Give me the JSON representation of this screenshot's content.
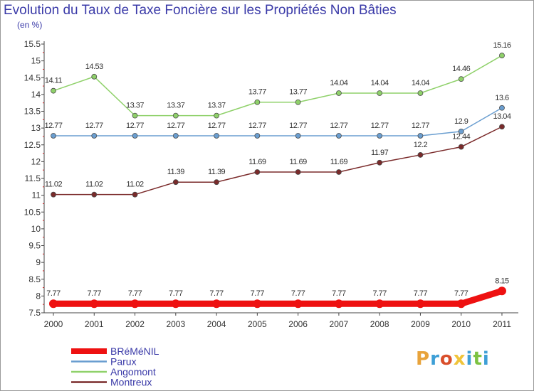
{
  "header": {
    "title": "Evolution du Taux de Taxe Foncière sur les Propriétés Non Bâties",
    "unit": "(en %)"
  },
  "logo": {
    "text": "Proxiti",
    "colors": [
      "#e8a33b",
      "#3e9fd6",
      "#d94f2b",
      "#f0c43a",
      "#3e9fd6",
      "#7cc242",
      "#3e9fd6"
    ]
  },
  "chart_data": {
    "type": "line",
    "x": [
      "2000",
      "2001",
      "2002",
      "2003",
      "2004",
      "2005",
      "2006",
      "2007",
      "2008",
      "2009",
      "2010",
      "2011"
    ],
    "y_ticks": [
      "7.5",
      "8",
      "8.5",
      "9",
      "9.5",
      "10",
      "10.5",
      "11",
      "11.5",
      "12",
      "12.5",
      "13",
      "13.5",
      "14",
      "14.5",
      "15",
      "15.5"
    ],
    "ylim": [
      7.5,
      15.5
    ],
    "grid": false,
    "legend_position": "bottom-left",
    "series": [
      {
        "name": "BRéMéNIL",
        "color": "#ee1111",
        "values": [
          7.77,
          7.77,
          7.77,
          7.77,
          7.77,
          7.77,
          7.77,
          7.77,
          7.77,
          7.77,
          7.77,
          8.15
        ],
        "labels": [
          "7.77",
          "7.77",
          "7.77",
          "7.77",
          "7.77",
          "7.77",
          "7.77",
          "7.77",
          "7.77",
          "7.77",
          "7.77",
          "8.15"
        ]
      },
      {
        "name": "Parux",
        "color": "#6a9ed0",
        "values": [
          12.77,
          12.77,
          12.77,
          12.77,
          12.77,
          12.77,
          12.77,
          12.77,
          12.77,
          12.77,
          12.9,
          13.6
        ],
        "labels": [
          "12.77",
          "12.77",
          "12.77",
          "12.77",
          "12.77",
          "12.77",
          "12.77",
          "12.77",
          "12.77",
          "12.77",
          "12.9",
          "13.6"
        ]
      },
      {
        "name": "Angomont",
        "color": "#8fd16a",
        "values": [
          14.11,
          14.53,
          13.37,
          13.37,
          13.37,
          13.77,
          13.77,
          14.04,
          14.04,
          14.04,
          14.46,
          15.16
        ],
        "labels": [
          "14.11",
          "14.53",
          "13.37",
          "13.37",
          "13.37",
          "13.77",
          "13.77",
          "14.04",
          "14.04",
          "14.04",
          "14.46",
          "15.16"
        ]
      },
      {
        "name": "Montreux",
        "color": "#7a2a2a",
        "values": [
          11.02,
          11.02,
          11.02,
          11.39,
          11.39,
          11.69,
          11.69,
          11.69,
          11.97,
          12.2,
          12.44,
          13.04
        ],
        "labels": [
          "11.02",
          "11.02",
          "11.02",
          "11.39",
          "11.39",
          "11.69",
          "11.69",
          "11.69",
          "11.97",
          "12.2",
          "12.44",
          "13.04"
        ]
      }
    ]
  }
}
